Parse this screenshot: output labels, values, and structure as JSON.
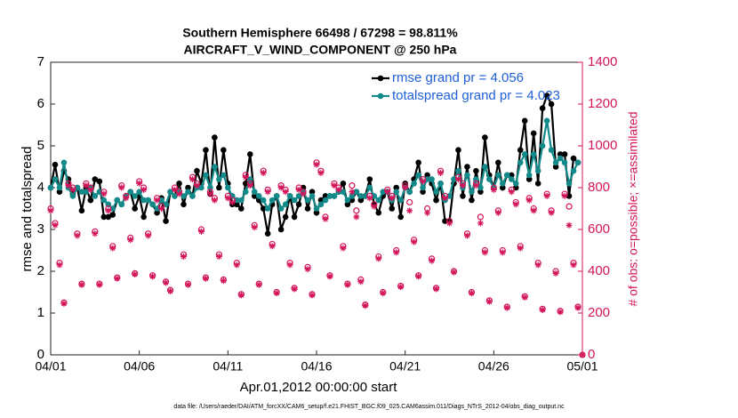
{
  "chart_data": {
    "type": "line",
    "title": "Southern Hemisphere 66498 / 67298 = 98.811%",
    "subtitle": "AIRCRAFT_V_WIND_COMPONENT @ 250 hPa",
    "xlabel": "Apr.01,2012 00:00:00 start",
    "ylabel": "rmse and totalspread",
    "y2label": "# of obs: o=possible; ×=assimilated",
    "footnote": "data file: /Users/raeder/DAI/ATM_forcXX/CAM6_setup/f.e21.FHIST_BGC.f09_025.CAM6assim.011/Diags_NTrS_2012-04/obs_diag_output.nc",
    "xlim": [
      0,
      30
    ],
    "xticks": [
      {
        "value": 0,
        "label": "04/01"
      },
      {
        "value": 5,
        "label": "04/06"
      },
      {
        "value": 10,
        "label": "04/11"
      },
      {
        "value": 15,
        "label": "04/16"
      },
      {
        "value": 20,
        "label": "04/21"
      },
      {
        "value": 25,
        "label": "04/26"
      },
      {
        "value": 30,
        "label": "05/01"
      }
    ],
    "ylim": [
      0,
      7
    ],
    "yticks": [
      0,
      1,
      2,
      3,
      4,
      5,
      6,
      7
    ],
    "y2lim": [
      0,
      1400
    ],
    "y2ticks": [
      0,
      200,
      400,
      600,
      800,
      1000,
      1200,
      1400
    ],
    "legend": "upper right",
    "legend_text_color": "#1f5fd6",
    "y2_color": "#d4145a",
    "x": [
      0,
      0.25,
      0.5,
      0.75,
      1,
      1.25,
      1.5,
      1.75,
      2,
      2.25,
      2.5,
      2.75,
      3,
      3.25,
      3.5,
      3.75,
      4,
      4.25,
      4.5,
      4.75,
      5,
      5.25,
      5.5,
      5.75,
      6,
      6.25,
      6.5,
      6.75,
      7,
      7.25,
      7.5,
      7.75,
      8,
      8.25,
      8.5,
      8.75,
      9,
      9.25,
      9.5,
      9.75,
      10,
      10.25,
      10.5,
      10.75,
      11,
      11.25,
      11.5,
      11.75,
      12,
      12.25,
      12.5,
      12.75,
      13,
      13.25,
      13.5,
      13.75,
      14,
      14.25,
      14.5,
      14.75,
      15,
      15.25,
      15.5,
      15.75,
      16,
      16.25,
      16.5,
      16.75,
      17,
      17.25,
      17.5,
      17.75,
      18,
      18.25,
      18.5,
      18.75,
      19,
      19.25,
      19.5,
      19.75,
      20,
      20.25,
      20.5,
      20.75,
      21,
      21.25,
      21.5,
      21.75,
      22,
      22.25,
      22.5,
      22.75,
      23,
      23.25,
      23.5,
      23.75,
      24,
      24.25,
      24.5,
      24.75,
      25,
      25.25,
      25.5,
      25.75,
      26,
      26.25,
      26.5,
      26.75,
      27,
      27.25,
      27.5,
      27.75,
      28,
      28.25,
      28.5,
      28.75,
      29,
      29.25,
      29.5,
      29.75,
      30
    ],
    "series": [
      {
        "name": "rmse grand pr = 4.056",
        "color": "#000000",
        "marker": "dot",
        "values": [
          4.0,
          4.55,
          3.9,
          4.4,
          4.2,
          3.85,
          4.0,
          3.45,
          4.0,
          3.7,
          4.2,
          4.15,
          3.3,
          3.3,
          3.35,
          3.7,
          3.6,
          3.8,
          3.9,
          3.5,
          3.8,
          3.3,
          3.7,
          3.6,
          3.4,
          3.75,
          3.2,
          3.9,
          3.8,
          4.1,
          3.6,
          4.0,
          3.8,
          4.4,
          4.1,
          4.9,
          3.85,
          5.2,
          4.0,
          4.9,
          4.1,
          3.6,
          3.6,
          3.5,
          4.1,
          4.8,
          3.8,
          3.7,
          3.5,
          2.9,
          3.6,
          3.8,
          3.0,
          3.3,
          3.8,
          3.3,
          3.6,
          4.0,
          3.5,
          3.9,
          3.4,
          3.7,
          3.8,
          3.8,
          3.8,
          3.9,
          4.1,
          3.6,
          3.7,
          3.9,
          3.7,
          3.8,
          4.2,
          3.6,
          3.4,
          3.8,
          3.9,
          3.5,
          4.0,
          3.3,
          4.1,
          3.9,
          4.2,
          4.6,
          3.9,
          4.3,
          4.1,
          3.7,
          4.1,
          3.2,
          3.2,
          4.1,
          4.9,
          3.8,
          4.5,
          3.7,
          4.4,
          3.9,
          5.2,
          4.3,
          4.0,
          4.6,
          4.0,
          4.3,
          4.3,
          4.0,
          4.9,
          5.6,
          4.2,
          5.3,
          4.1,
          5.9,
          6.2,
          6.0,
          4.5,
          4.8,
          4.8,
          3.8,
          4.7,
          4.6,
          null
        ]
      },
      {
        "name": "totalspread grand pr = 4.023",
        "color": "#138a8a",
        "marker": "dot",
        "values": [
          4.0,
          4.2,
          4.0,
          4.6,
          4.0,
          3.8,
          4.0,
          3.9,
          3.9,
          4.0,
          3.8,
          3.9,
          3.7,
          3.6,
          3.5,
          3.7,
          3.6,
          3.8,
          3.9,
          3.8,
          3.9,
          3.7,
          3.7,
          3.6,
          3.5,
          3.7,
          3.6,
          3.9,
          3.8,
          3.9,
          3.8,
          3.9,
          3.8,
          4.0,
          4.0,
          4.3,
          4.0,
          4.5,
          4.2,
          4.3,
          4.0,
          3.8,
          3.7,
          3.7,
          3.9,
          4.2,
          3.9,
          3.8,
          3.7,
          3.5,
          3.7,
          3.8,
          3.5,
          3.6,
          3.8,
          3.7,
          3.8,
          3.9,
          3.7,
          3.8,
          3.5,
          3.6,
          3.7,
          3.8,
          3.8,
          3.9,
          3.9,
          3.7,
          3.8,
          3.9,
          3.8,
          3.8,
          4.0,
          3.8,
          3.7,
          3.9,
          3.9,
          3.7,
          3.9,
          3.7,
          4.0,
          3.9,
          4.1,
          4.3,
          4.0,
          4.2,
          4.2,
          3.9,
          4.1,
          3.7,
          3.8,
          4.2,
          4.4,
          4.0,
          4.3,
          3.9,
          4.2,
          4.0,
          4.5,
          4.2,
          4.0,
          4.3,
          4.1,
          4.3,
          4.2,
          4.1,
          4.6,
          4.8,
          4.3,
          4.8,
          4.4,
          5.0,
          5.6,
          4.9,
          4.6,
          4.7,
          4.6,
          4.1,
          4.4,
          4.6,
          null
        ]
      },
      {
        "color": "#d4145a",
        "marker": "circle",
        "axis": "y2",
        "values": [
          700,
          630,
          440,
          250,
          820,
          800,
          580,
          340,
          820,
          800,
          590,
          340,
          780,
          700,
          520,
          370,
          810,
          760,
          560,
          390,
          830,
          800,
          580,
          380,
          750,
          710,
          350,
          310,
          800,
          780,
          480,
          340,
          850,
          820,
          600,
          370,
          780,
          750,
          480,
          360,
          760,
          740,
          440,
          290,
          860,
          820,
          620,
          340,
          880,
          790,
          530,
          300,
          810,
          790,
          440,
          320,
          800,
          780,
          420,
          290,
          920,
          880,
          660,
          380,
          820,
          800,
          520,
          340,
          810,
          690,
          360,
          240,
          760,
          720,
          470,
          300,
          790,
          760,
          500,
          330,
          810,
          730,
          550,
          380,
          840,
          700,
          460,
          320,
          880,
          760,
          640,
          400,
          850,
          820,
          580,
          300,
          820,
          660,
          500,
          260,
          800,
          690,
          500,
          230,
          790,
          730,
          520,
          280,
          750,
          700,
          440,
          220,
          770,
          690,
          400,
          210,
          770,
          710,
          440,
          230,
          0
        ]
      },
      {
        "color": "#d4145a",
        "marker": "asterisk",
        "axis": "y2",
        "values": [
          690,
          620,
          430,
          245,
          810,
          790,
          570,
          335,
          810,
          790,
          580,
          335,
          770,
          690,
          510,
          365,
          800,
          750,
          550,
          385,
          820,
          790,
          570,
          375,
          740,
          700,
          345,
          305,
          790,
          770,
          470,
          335,
          840,
          810,
          590,
          365,
          770,
          740,
          470,
          355,
          750,
          730,
          430,
          285,
          850,
          810,
          610,
          335,
          870,
          780,
          520,
          295,
          800,
          780,
          430,
          315,
          790,
          770,
          410,
          285,
          910,
          870,
          650,
          375,
          810,
          790,
          510,
          335,
          780,
          660,
          350,
          235,
          750,
          710,
          460,
          295,
          780,
          750,
          490,
          325,
          800,
          690,
          540,
          375,
          830,
          680,
          450,
          315,
          870,
          750,
          630,
          395,
          840,
          810,
          570,
          295,
          810,
          630,
          490,
          255,
          790,
          680,
          490,
          225,
          780,
          720,
          510,
          275,
          740,
          690,
          430,
          215,
          760,
          680,
          390,
          205,
          760,
          620,
          430,
          225,
          0
        ]
      }
    ]
  }
}
